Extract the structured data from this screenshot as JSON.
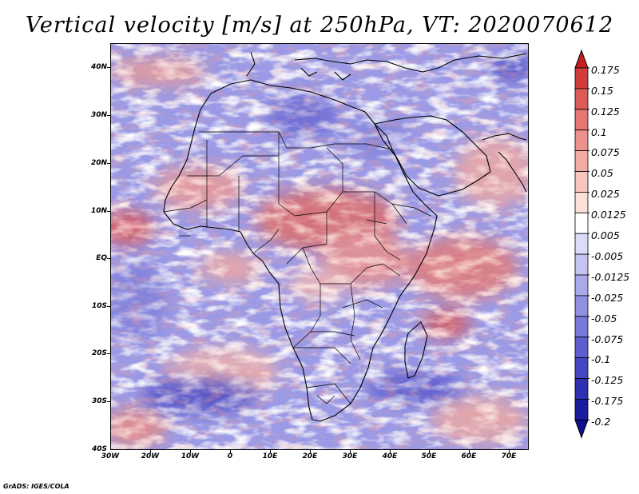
{
  "title": "Vertical velocity [m/s] at 250hPa, VT: 2020070612",
  "map": {
    "lat_labels": [
      "40N",
      "30N",
      "20N",
      "10N",
      "EQ",
      "10S",
      "20S",
      "30S",
      "40S"
    ],
    "lon_labels": [
      "30W",
      "20W",
      "10W",
      "0",
      "10E",
      "20E",
      "30E",
      "40E",
      "50E",
      "60E",
      "70E"
    ],
    "lat_range": [
      -40,
      45
    ],
    "lon_range": [
      -30,
      75
    ]
  },
  "colorbar": {
    "labels": [
      "0.175",
      "0.15",
      "0.125",
      "0.1",
      "0.075",
      "0.05",
      "0.025",
      "0.0125",
      "0.005",
      "-0.005",
      "-0.0125",
      "-0.025",
      "-0.05",
      "-0.075",
      "-0.1",
      "-0.125",
      "-0.175",
      "-0.2"
    ],
    "colors": [
      "#c41e1e",
      "#d23c3c",
      "#dc5a58",
      "#e57672",
      "#ec918b",
      "#f2aca4",
      "#f7c6bf",
      "#fbe0da",
      "#ffffff",
      "#dcdcf6",
      "#c4c4f0",
      "#aaaaea",
      "#9090e2",
      "#7878d8",
      "#5e5ece",
      "#4646c2",
      "#3030b2",
      "#1c1ca0",
      "#10108c"
    ]
  },
  "footer": "GrADS: IGES/COLA"
}
